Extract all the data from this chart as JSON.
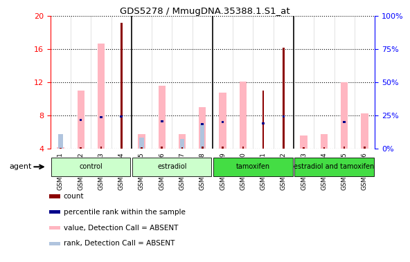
{
  "title": "GDS5278 / MmugDNA.35388.1.S1_at",
  "samples": [
    "GSM362921",
    "GSM362922",
    "GSM362923",
    "GSM362924",
    "GSM362925",
    "GSM362926",
    "GSM362927",
    "GSM362928",
    "GSM362929",
    "GSM362930",
    "GSM362931",
    "GSM362932",
    "GSM362933",
    "GSM362934",
    "GSM362935",
    "GSM362936"
  ],
  "count": [
    4.1,
    4.2,
    4.3,
    19.2,
    4.2,
    4.3,
    4.2,
    4.3,
    4.3,
    4.3,
    11.0,
    16.2,
    4.2,
    4.2,
    4.3,
    4.3
  ],
  "pct_rank": [
    null,
    7.5,
    7.8,
    7.9,
    null,
    7.3,
    null,
    7.0,
    7.2,
    null,
    7.1,
    7.9,
    null,
    null,
    7.2,
    null
  ],
  "value_absent": [
    4.2,
    11.0,
    16.7,
    null,
    5.8,
    11.6,
    5.8,
    9.0,
    10.8,
    12.1,
    null,
    null,
    5.6,
    5.8,
    12.0,
    8.3
  ],
  "rank_absent": [
    5.8,
    null,
    null,
    null,
    5.4,
    null,
    5.2,
    7.0,
    null,
    null,
    null,
    null,
    null,
    null,
    null,
    null
  ],
  "ylim_left": [
    4,
    20
  ],
  "ylim_right": [
    0,
    100
  ],
  "yticks_left": [
    4,
    8,
    12,
    16,
    20
  ],
  "yticks_right": [
    0,
    25,
    50,
    75,
    100
  ],
  "ytick_labels_right": [
    "0%",
    "25%",
    "50%",
    "75%",
    "100%"
  ],
  "count_color": "#8b0000",
  "pct_rank_color": "#00008b",
  "value_absent_color": "#ffb6c1",
  "rank_absent_color": "#b0c4de",
  "agent_label": "agent",
  "group_data": [
    {
      "name": "control",
      "start": 0,
      "end": 3,
      "color": "#ccffcc"
    },
    {
      "name": "estradiol",
      "start": 4,
      "end": 7,
      "color": "#ccffcc"
    },
    {
      "name": "tamoxifen",
      "start": 8,
      "end": 11,
      "color": "#44dd44"
    },
    {
      "name": "estradiol and tamoxifen",
      "start": 12,
      "end": 15,
      "color": "#44dd44"
    }
  ],
  "legend_items": [
    {
      "color": "#8b0000",
      "label": "count"
    },
    {
      "color": "#00008b",
      "label": "percentile rank within the sample"
    },
    {
      "color": "#ffb6c1",
      "label": "value, Detection Call = ABSENT"
    },
    {
      "color": "#b0c4de",
      "label": "rank, Detection Call = ABSENT"
    }
  ]
}
